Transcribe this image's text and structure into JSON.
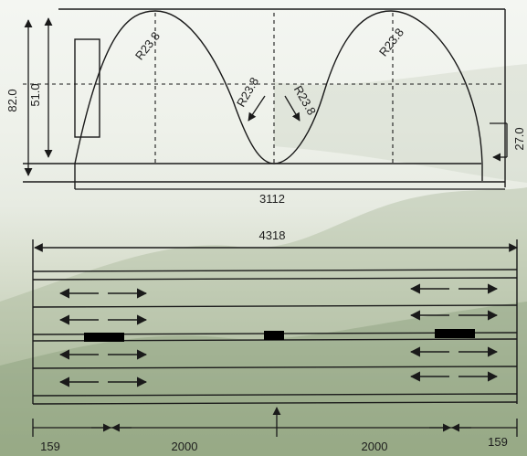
{
  "profile": {
    "radius_labels": [
      "R23.8",
      "R23.8",
      "R23.8",
      "R23.8"
    ],
    "dims": {
      "total_height": "82.0",
      "wave_height": "51.0",
      "end_offset": "27.0",
      "profile_length": "3112"
    }
  },
  "plan": {
    "total_length": "4318",
    "segments": [
      "159",
      "2000",
      "2000",
      "159"
    ],
    "strip_count": 6,
    "connector_count": 3
  },
  "colors": {
    "line": "#1a1a1a",
    "connector": "#000000"
  }
}
